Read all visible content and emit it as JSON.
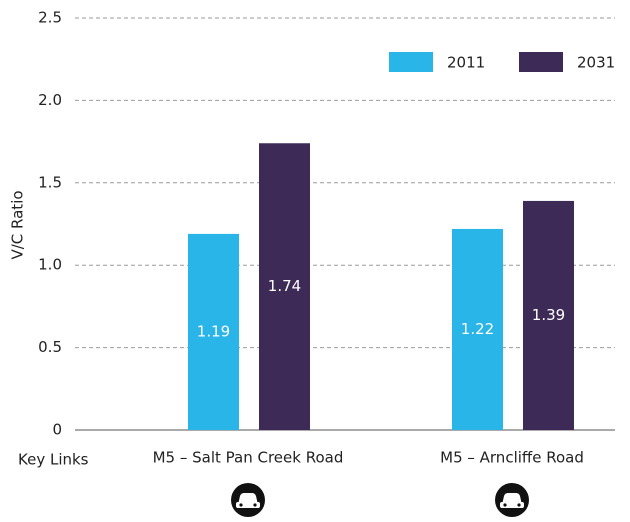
{
  "chart_data": {
    "type": "bar",
    "y_label": "V/C Ratio",
    "x_label": "Key Links",
    "categories": [
      "M5 – Salt Pan Creek Road",
      "M5 – Arncliffe Road"
    ],
    "series": [
      {
        "name": "2011",
        "color": "#29b5e8",
        "values": [
          1.19,
          1.22
        ]
      },
      {
        "name": "2031",
        "color": "#3e2a56",
        "values": [
          1.74,
          1.39
        ]
      }
    ],
    "ylim": [
      0,
      2.5
    ],
    "yticks": [
      0,
      0.5,
      {
        "value": 1,
        "label": "1.0"
      },
      1.5,
      {
        "value": 2,
        "label": "2.0"
      },
      2.5
    ],
    "grid": true,
    "legend": "top-right"
  }
}
